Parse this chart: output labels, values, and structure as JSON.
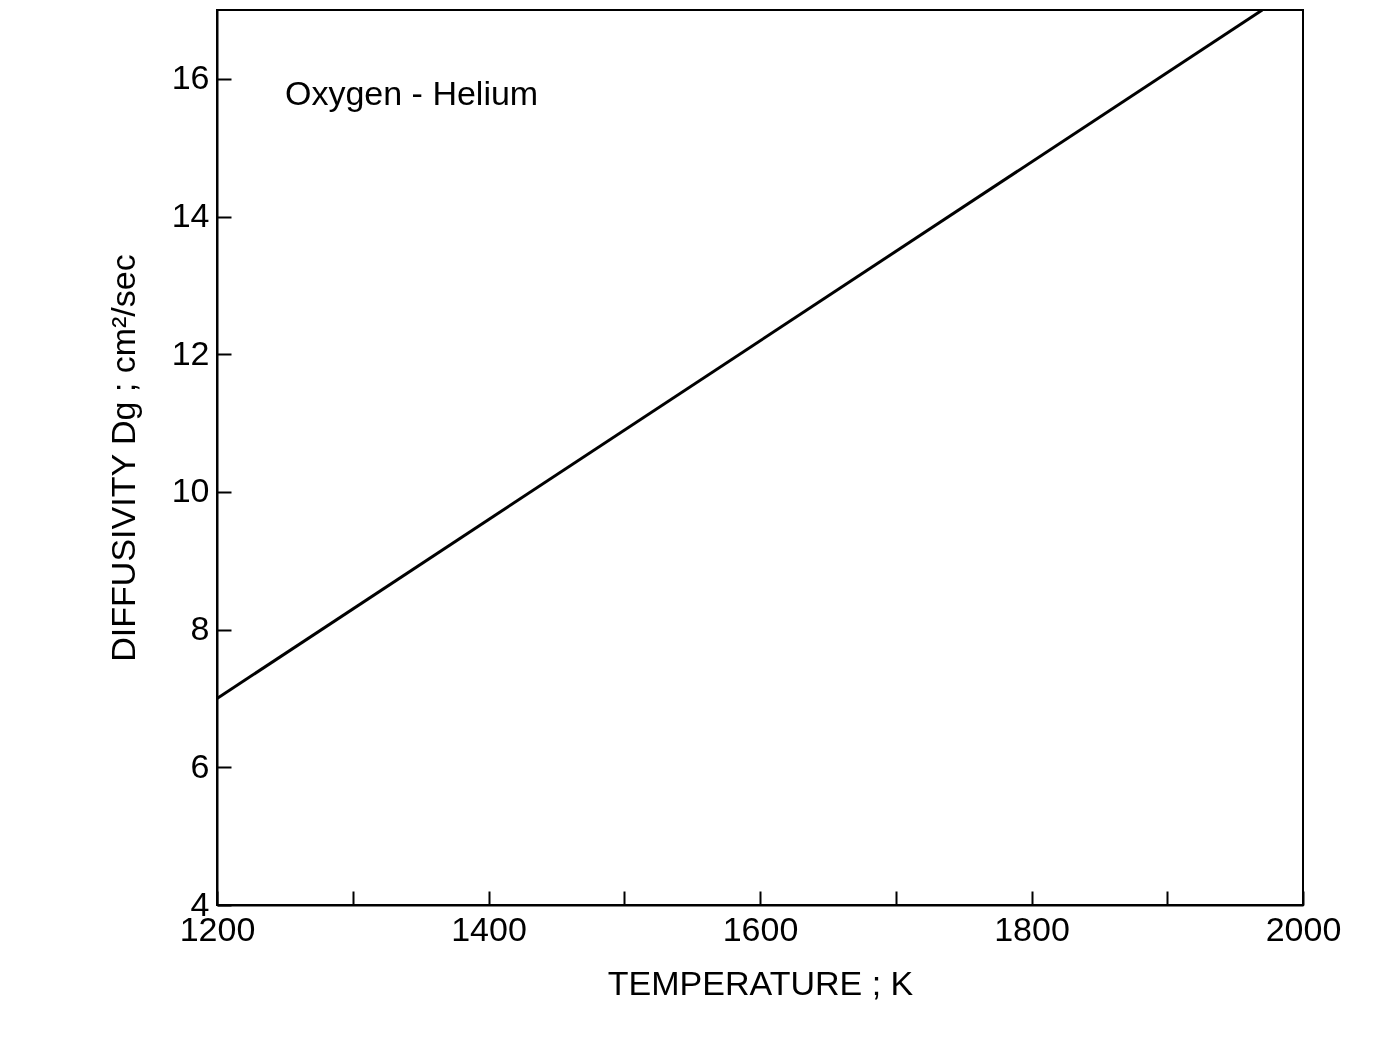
{
  "chart_data": {
    "type": "line",
    "xlabel": "TEMPERATURE ; K",
    "ylabel": "DIFFUSIVITY   Dg ; cm²/sec",
    "annotations": [
      "Oxygen - Helium"
    ],
    "x": [
      1200,
      1970
    ],
    "series": [
      {
        "color": "#000000",
        "values": [
          7.0,
          17.0
        ]
      }
    ],
    "xlim": [
      1200,
      2000
    ],
    "ylim": [
      4,
      17
    ],
    "xticks": [
      1200,
      {
        "value": 1300,
        "label": null
      },
      1400,
      {
        "value": 1500,
        "label": null
      },
      1600,
      {
        "value": 1700,
        "label": null
      },
      1800,
      {
        "value": 1900,
        "label": null
      },
      2000
    ],
    "yticks": [
      4,
      6,
      8,
      10,
      12,
      14,
      16
    ],
    "grid": false,
    "marker": "none",
    "line_style": "solid"
  }
}
